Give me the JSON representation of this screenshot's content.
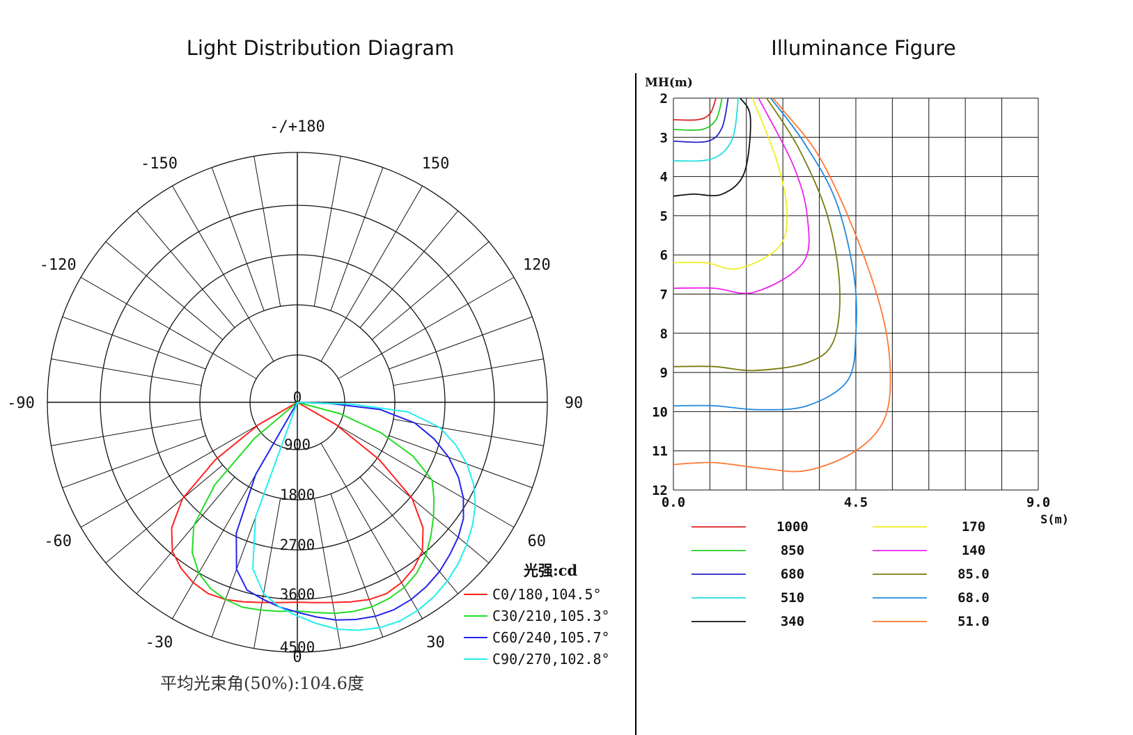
{
  "titles": {
    "left": "Light Distribution Diagram",
    "right": "Illuminance Figure"
  },
  "chart_data": [
    {
      "type": "polar",
      "angle_labels": [
        {
          "text": "-/+180",
          "angle": 180
        },
        {
          "text": "150",
          "angle": 150
        },
        {
          "text": "-150",
          "angle": -150
        },
        {
          "text": "120",
          "angle": 120
        },
        {
          "text": "-120",
          "angle": -120
        },
        {
          "text": "90",
          "angle": 90
        },
        {
          "text": "-90",
          "angle": -90
        },
        {
          "text": "60",
          "angle": 60
        },
        {
          "text": "-60",
          "angle": -60
        },
        {
          "text": "30",
          "angle": 30
        },
        {
          "text": "-30",
          "angle": -30
        },
        {
          "text": "0",
          "angle": 0
        }
      ],
      "radial_ticks": [
        "0",
        "900",
        "1800",
        "2700",
        "3600",
        "4500"
      ],
      "radial_max": 4500,
      "unit_label": "光强:cd",
      "footer": "平均光束角(50%):104.6度",
      "series": [
        {
          "name": "C0/180,104.5°",
          "color": "#ff2020",
          "points": [
            [
              -60,
              800
            ],
            [
              -55,
              1800
            ],
            [
              -50,
              2700
            ],
            [
              -45,
              3200
            ],
            [
              -40,
              3500
            ],
            [
              -35,
              3650
            ],
            [
              -30,
              3750
            ],
            [
              -25,
              3800
            ],
            [
              -20,
              3780
            ],
            [
              -15,
              3720
            ],
            [
              -10,
              3660
            ],
            [
              -5,
              3620
            ],
            [
              0,
              3600
            ],
            [
              5,
              3620
            ],
            [
              10,
              3660
            ],
            [
              15,
              3720
            ],
            [
              20,
              3780
            ],
            [
              25,
              3800
            ],
            [
              30,
              3750
            ],
            [
              35,
              3650
            ],
            [
              40,
              3500
            ],
            [
              45,
              3200
            ],
            [
              50,
              2700
            ],
            [
              55,
              1800
            ],
            [
              60,
              800
            ],
            [
              62,
              0
            ]
          ]
        },
        {
          "name": "C30/210,105.3°",
          "color": "#22dd22",
          "points": [
            [
              -55,
              0
            ],
            [
              -50,
              1000
            ],
            [
              -45,
              2100
            ],
            [
              -40,
              2900
            ],
            [
              -35,
              3300
            ],
            [
              -30,
              3550
            ],
            [
              -25,
              3700
            ],
            [
              -20,
              3780
            ],
            [
              -15,
              3820
            ],
            [
              -10,
              3800
            ],
            [
              -5,
              3780
            ],
            [
              0,
              3760
            ],
            [
              5,
              3800
            ],
            [
              10,
              3860
            ],
            [
              15,
              3900
            ],
            [
              20,
              3920
            ],
            [
              25,
              3900
            ],
            [
              30,
              3850
            ],
            [
              35,
              3750
            ],
            [
              40,
              3600
            ],
            [
              45,
              3400
            ],
            [
              50,
              3200
            ],
            [
              55,
              3000
            ],
            [
              60,
              2800
            ],
            [
              65,
              2300
            ],
            [
              70,
              1600
            ],
            [
              75,
              800
            ],
            [
              80,
              0
            ]
          ]
        },
        {
          "name": "C60/240,105.7°",
          "color": "#2222ee",
          "points": [
            [
              -35,
              0
            ],
            [
              -30,
              1500
            ],
            [
              -25,
              2600
            ],
            [
              -20,
              3200
            ],
            [
              -15,
              3500
            ],
            [
              -10,
              3600
            ],
            [
              -5,
              3700
            ],
            [
              0,
              3780
            ],
            [
              5,
              3880
            ],
            [
              10,
              3980
            ],
            [
              15,
              4050
            ],
            [
              20,
              4100
            ],
            [
              25,
              4120
            ],
            [
              30,
              4100
            ],
            [
              35,
              4050
            ],
            [
              40,
              3980
            ],
            [
              45,
              3880
            ],
            [
              50,
              3780
            ],
            [
              55,
              3650
            ],
            [
              60,
              3450
            ],
            [
              65,
              3200
            ],
            [
              70,
              2900
            ],
            [
              75,
              2550
            ],
            [
              80,
              2150
            ],
            [
              85,
              1500
            ],
            [
              88,
              600
            ],
            [
              90,
              0
            ]
          ]
        },
        {
          "name": "C90/270,102.8°",
          "color": "#22eeee",
          "points": [
            [
              -25,
              0
            ],
            [
              -20,
              2200
            ],
            [
              -15,
              3100
            ],
            [
              -10,
              3500
            ],
            [
              -5,
              3700
            ],
            [
              0,
              3850
            ],
            [
              5,
              4000
            ],
            [
              10,
              4150
            ],
            [
              15,
              4250
            ],
            [
              20,
              4320
            ],
            [
              25,
              4350
            ],
            [
              30,
              4330
            ],
            [
              35,
              4280
            ],
            [
              40,
              4200
            ],
            [
              45,
              4100
            ],
            [
              50,
              3980
            ],
            [
              55,
              3850
            ],
            [
              60,
              3700
            ],
            [
              65,
              3500
            ],
            [
              70,
              3250
            ],
            [
              75,
              2950
            ],
            [
              80,
              2600
            ],
            [
              85,
              2000
            ],
            [
              88,
              1000
            ],
            [
              90,
              0
            ]
          ]
        }
      ]
    },
    {
      "type": "contour",
      "xlabel": "S(m)",
      "ylabel": "MH(m)",
      "x_ticks": [
        "0.0",
        "4.5",
        "9.0"
      ],
      "xlim": [
        0,
        9
      ],
      "y_ticks": [
        "2",
        "3",
        "4",
        "5",
        "6",
        "7",
        "8",
        "9",
        "10",
        "11",
        "12"
      ],
      "ylim": [
        2,
        12
      ],
      "grid": true,
      "series": [
        {
          "name": "1000",
          "color": "#dd2222",
          "points": [
            [
              0,
              2.55
            ],
            [
              0.6,
              2.55
            ],
            [
              0.9,
              2.4
            ],
            [
              1.05,
              2.0
            ]
          ]
        },
        {
          "name": "850",
          "color": "#22cc22",
          "points": [
            [
              0,
              2.8
            ],
            [
              0.7,
              2.8
            ],
            [
              1.05,
              2.55
            ],
            [
              1.2,
              2.0
            ]
          ]
        },
        {
          "name": "680",
          "color": "#2222cc",
          "points": [
            [
              0,
              3.1
            ],
            [
              0.85,
              3.1
            ],
            [
              1.2,
              2.75
            ],
            [
              1.35,
              2.0
            ]
          ]
        },
        {
          "name": "510",
          "color": "#22dddd",
          "points": [
            [
              0,
              3.6
            ],
            [
              0.95,
              3.55
            ],
            [
              1.45,
              3.05
            ],
            [
              1.6,
              2.0
            ]
          ]
        },
        {
          "name": "340",
          "color": "#111111",
          "points": [
            [
              0,
              4.5
            ],
            [
              0.5,
              4.45
            ],
            [
              1.2,
              4.45
            ],
            [
              1.75,
              3.9
            ],
            [
              1.9,
              2.5
            ],
            [
              1.65,
              2.0
            ]
          ]
        },
        {
          "name": "170",
          "color": "#eeee22",
          "points": [
            [
              0,
              6.2
            ],
            [
              0.8,
              6.2
            ],
            [
              1.6,
              6.35
            ],
            [
              2.6,
              5.8
            ],
            [
              2.8,
              4.9
            ],
            [
              2.55,
              3.6
            ],
            [
              1.95,
              2.0
            ]
          ]
        },
        {
          "name": "140",
          "color": "#ee22ee",
          "points": [
            [
              0,
              6.85
            ],
            [
              1.0,
              6.85
            ],
            [
              2.0,
              6.95
            ],
            [
              3.2,
              6.2
            ],
            [
              3.3,
              5.0
            ],
            [
              2.95,
              3.7
            ],
            [
              2.1,
              2.0
            ]
          ]
        },
        {
          "name": "85.0",
          "color": "#7a7a10",
          "points": [
            [
              0,
              8.85
            ],
            [
              1.0,
              8.85
            ],
            [
              2.0,
              8.95
            ],
            [
              3.3,
              8.75
            ],
            [
              3.95,
              8.2
            ],
            [
              4.1,
              6.8
            ],
            [
              3.8,
              5.0
            ],
            [
              3.1,
              3.3
            ],
            [
              2.3,
              2.0
            ]
          ]
        },
        {
          "name": "68.0",
          "color": "#2288dd",
          "points": [
            [
              0,
              9.85
            ],
            [
              1.0,
              9.85
            ],
            [
              2.1,
              9.95
            ],
            [
              3.3,
              9.85
            ],
            [
              4.3,
              9.2
            ],
            [
              4.5,
              8.0
            ],
            [
              4.45,
              6.5
            ],
            [
              4.0,
              4.6
            ],
            [
              3.2,
              3.1
            ],
            [
              2.4,
              2.0
            ]
          ]
        },
        {
          "name": "51.0",
          "color": "#ff7733",
          "points": [
            [
              0,
              11.35
            ],
            [
              1.0,
              11.3
            ],
            [
              2.2,
              11.45
            ],
            [
              3.3,
              11.5
            ],
            [
              4.5,
              11.0
            ],
            [
              5.2,
              10.2
            ],
            [
              5.35,
              9.0
            ],
            [
              5.15,
              7.5
            ],
            [
              4.5,
              5.5
            ],
            [
              3.6,
              3.5
            ],
            [
              2.7,
              2.3
            ],
            [
              2.45,
              2.0
            ]
          ]
        }
      ]
    }
  ]
}
